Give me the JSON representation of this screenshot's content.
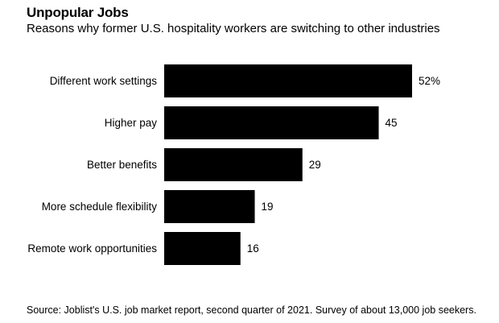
{
  "title": "Unpopular Jobs",
  "subtitle": "Reasons why former U.S. hospitality workers are switching to other industries",
  "source": "Source: Joblist's U.S. job market report, second quarter of 2021. Survey of about 13,000 job seekers.",
  "chart_data": {
    "type": "bar",
    "orientation": "horizontal",
    "title": "Unpopular Jobs",
    "subtitle": "Reasons why former U.S. hospitality workers are switching to other industries",
    "categories": [
      "Different work settings",
      "Higher pay",
      "Better benefits",
      "More schedule flexibility",
      "Remote work opportunities"
    ],
    "values": [
      52,
      45,
      29,
      19,
      16
    ],
    "value_labels": [
      "52%",
      "45",
      "29",
      "19",
      "16"
    ],
    "unit": "%",
    "bar_color": "#000000",
    "grid": false,
    "legend": "none",
    "xlim": [
      0,
      52
    ]
  }
}
